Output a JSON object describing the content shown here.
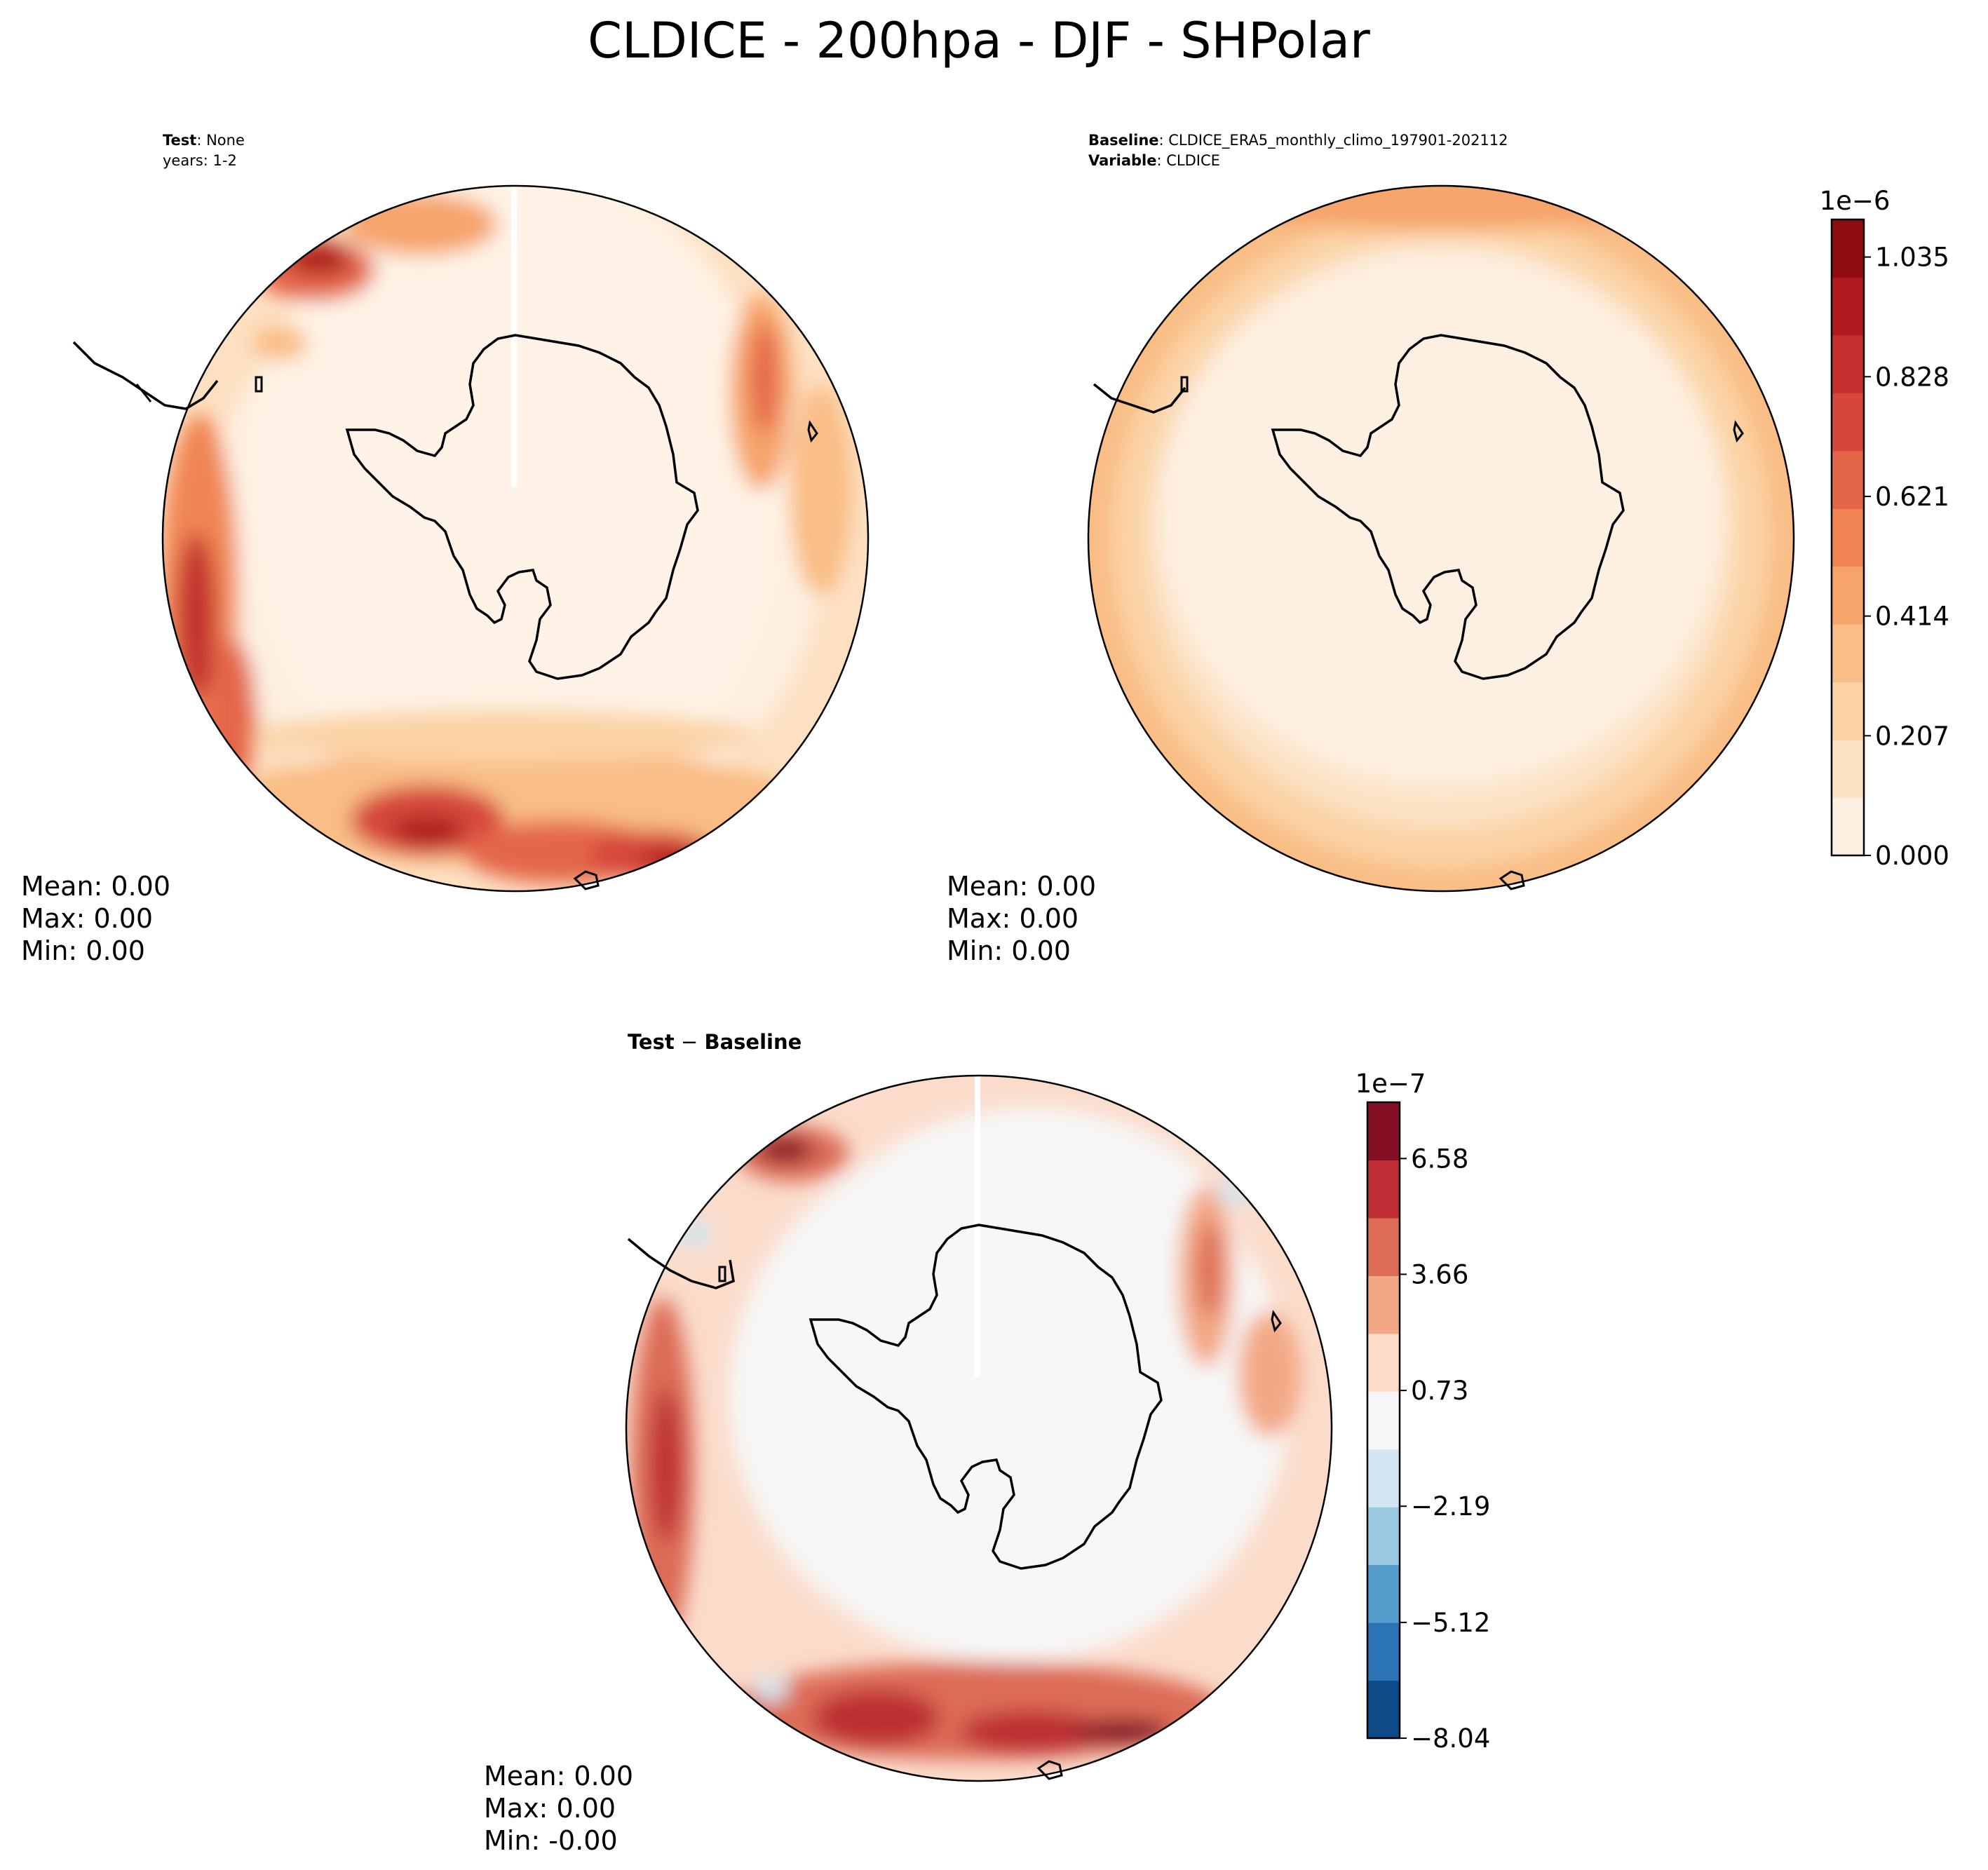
{
  "figure": {
    "title": "CLDICE - 200hpa - DJF - SHPolar"
  },
  "panels": {
    "test": {
      "header_key": "Test",
      "header_value": ": None",
      "header_line2": "years: 1-2",
      "stats": [
        "Mean:  0.00",
        "Max:  0.00",
        "Min:  0.00"
      ]
    },
    "baseline": {
      "header_key": "Baseline",
      "header_value": ": CLDICE_ERA5_monthly_climo_197901-202112",
      "header_key2": "Variable",
      "header_value2": ": CLDICE",
      "stats": [
        "Mean:  0.00",
        "Max:  0.00",
        "Min:  0.00"
      ]
    },
    "diff": {
      "header_key": "Test",
      "header_op": " − ",
      "header_key2": "Baseline",
      "stats": [
        "Mean:  0.00",
        "Max:  0.00",
        "Min: -0.00"
      ]
    }
  },
  "colors": {
    "seq": [
      "#fff5eb",
      "#fee6ce",
      "#fdd0a2",
      "#fdae6b",
      "#fd8d3c",
      "#f16913",
      "#d94801",
      "#a63603",
      "#7f2704"
    ],
    "reds": [
      "#fdf0e6",
      "#fbe2cb",
      "#fad0a8",
      "#f8b785",
      "#f59b68",
      "#ee7c55",
      "#e05a44",
      "#cf3b33",
      "#bd2024",
      "#a50f15",
      "#8b0000"
    ],
    "diverging": [
      "#053061",
      "#2166ac",
      "#4393c3",
      "#92c5de",
      "#d1e5f0",
      "#f7f7f7",
      "#fddbc7",
      "#f4a582",
      "#d6604d",
      "#b2182b",
      "#67001f"
    ],
    "land_outline": "#000000"
  },
  "chart_data": [
    {
      "type": "heatmap",
      "name": "test",
      "projection": "south-polar-stereographic",
      "mean": 0.0,
      "max": 0.0,
      "min": 0.0
    },
    {
      "type": "heatmap",
      "name": "baseline",
      "projection": "south-polar-stereographic",
      "mean": 0.0,
      "max": 0.0,
      "min": 0.0,
      "colorbar": {
        "exponent_label": "1e−6",
        "ticks": [
          "0.000",
          "0.207",
          "0.414",
          "0.621",
          "0.828",
          "1.035"
        ],
        "tick_values": [
          0.0,
          0.207,
          0.414,
          0.621,
          0.828,
          1.035
        ],
        "range": [
          0.0,
          1.1
        ],
        "levels": 11,
        "colors": [
          "#fdf0e2",
          "#fce3c6",
          "#fbd3a6",
          "#f9bd85",
          "#f6a46a",
          "#f08553",
          "#e46648",
          "#d5473a",
          "#c3302d",
          "#ae1a1d",
          "#8f0c10"
        ]
      }
    },
    {
      "type": "heatmap",
      "name": "test-minus-baseline",
      "projection": "south-polar-stereographic",
      "mean": 0.0,
      "max": 0.0,
      "min": -0.0,
      "colorbar": {
        "exponent_label": "1e−7",
        "ticks": [
          "−8.04",
          "−5.12",
          "−2.19",
          "0.73",
          "3.66",
          "6.58"
        ],
        "tick_values": [
          -8.04,
          -5.12,
          -2.19,
          0.73,
          3.66,
          6.58
        ],
        "range": [
          -8.04,
          8.0
        ],
        "levels": 11,
        "colors": [
          "#0d4a87",
          "#2a74b6",
          "#539ccb",
          "#9ac8e0",
          "#d3e6f1",
          "#f7f7f7",
          "#fbdccb",
          "#f3a885",
          "#dc6c56",
          "#bd2d33",
          "#850f25"
        ]
      }
    }
  ]
}
